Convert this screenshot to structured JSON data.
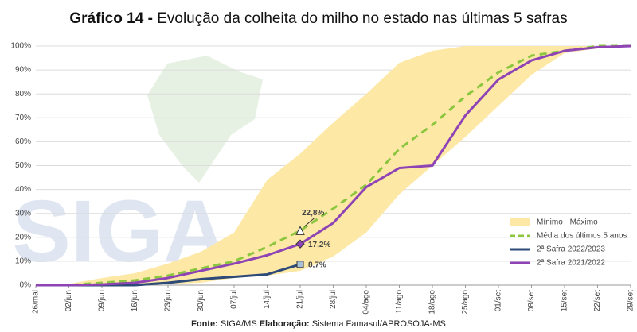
{
  "chart_data": {
    "type": "line",
    "title": [
      "Gráfico 14 -",
      "Evolução da colheita do milho no estado nas últimas 5 safras"
    ],
    "watermark": "SIGA",
    "source": {
      "label": "Fonte:",
      "text": "SIGA/MS"
    },
    "credit": {
      "label": "Elaboração:",
      "text": "Sistema Famasul/APROSOJA-MS"
    },
    "categories": [
      "26/mai",
      "02/jun",
      "09/jun",
      "16/jun",
      "23/jun",
      "30/jun",
      "07/jul",
      "14/jul",
      "21/jul",
      "28/jul",
      "04/ago",
      "11/ago",
      "18/ago",
      "25/ago",
      "01/set",
      "08/set",
      "15/set",
      "22/set",
      "29/set"
    ],
    "ylim": [
      0,
      100
    ],
    "yticks": [
      {
        "value": 0,
        "label": "0%"
      },
      {
        "value": 10,
        "label": "10%"
      },
      {
        "value": 20,
        "label": "20%"
      },
      {
        "value": 30,
        "label": "30%"
      },
      {
        "value": 40,
        "label": "40%"
      },
      {
        "value": 50,
        "label": "50%"
      },
      {
        "value": 60,
        "label": "60%"
      },
      {
        "value": 70,
        "label": "70%"
      },
      {
        "value": 80,
        "label": "80%"
      },
      {
        "value": 90,
        "label": "90%"
      },
      {
        "value": 100,
        "label": "100%"
      }
    ],
    "grid": true,
    "legend": "lower right",
    "band": {
      "name": "Mínimo - Máximo",
      "color": "#fde8a6",
      "max": [
        0,
        0.5,
        3,
        5,
        9,
        14,
        22,
        44,
        55,
        68,
        80,
        93,
        98,
        100,
        100,
        100,
        100,
        100,
        100
      ],
      "min": [
        0,
        0,
        0,
        0,
        0.5,
        1,
        3,
        4,
        6,
        12,
        22,
        38,
        50,
        62,
        75,
        88,
        97,
        99,
        100
      ]
    },
    "series": [
      {
        "name": "Média dos últimos 5 anos",
        "color": "#8cc63f",
        "dash": true,
        "marker": "triangle",
        "values": [
          0,
          0,
          1,
          2,
          4,
          7,
          10,
          16,
          22.8,
          32,
          42,
          57,
          67,
          79,
          89,
          96,
          98,
          100,
          100
        ],
        "value_labels": [
          null,
          null,
          null,
          null,
          null,
          null,
          null,
          null,
          "22,8%",
          null,
          null,
          null,
          null,
          null,
          null,
          null,
          null,
          null,
          null
        ]
      },
      {
        "name": "2ª Safra 2022/2023",
        "color": "#2e4a78",
        "marker": "square",
        "values": [
          0,
          0,
          0,
          0,
          1,
          2.5,
          3.5,
          4.5,
          8.7,
          null,
          null,
          null,
          null,
          null,
          null,
          null,
          null,
          null,
          null
        ],
        "value_labels": [
          null,
          null,
          null,
          null,
          null,
          null,
          null,
          null,
          "8,7%",
          null,
          null,
          null,
          null,
          null,
          null,
          null,
          null,
          null,
          null
        ]
      },
      {
        "name": "2ª Safra 2021/2022",
        "color": "#8e44b5",
        "marker": "diamond",
        "values": [
          0,
          0,
          0.3,
          1,
          3,
          6,
          9,
          12.5,
          17.2,
          26,
          41,
          49,
          50,
          71,
          86,
          94,
          98,
          99.5,
          100
        ],
        "value_labels": [
          null,
          null,
          null,
          null,
          null,
          null,
          null,
          null,
          "17,2%",
          null,
          null,
          null,
          null,
          null,
          null,
          null,
          null,
          null,
          null
        ]
      }
    ]
  }
}
